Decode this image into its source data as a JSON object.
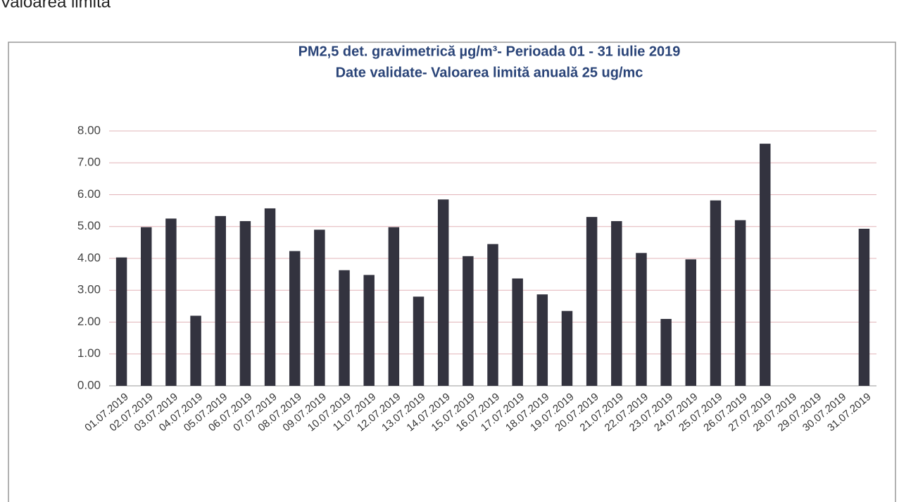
{
  "page_text": "Valoarea limită",
  "chart_data": {
    "type": "bar",
    "title": "PM2,5 det. gravimetrică µg/m³- Perioada 01 - 31 iulie 2019",
    "subtitle": "Date validate- Valoarea limită anuală  25  ug/mc",
    "categories": [
      "01.07.2019",
      "02.07.2019",
      "03.07.2019",
      "04.07.2019",
      "05.07.2019",
      "06.07.2019",
      "07.07.2019",
      "08.07.2019",
      "09.07.2019",
      "10.07.2019",
      "11.07.2019",
      "12.07.2019",
      "13.07.2019",
      "14.07.2019",
      "15.07.2019",
      "16.07.2019",
      "17.07.2019",
      "18.07.2019",
      "19.07.2019",
      "20.07.2019",
      "21.07.2019",
      "22.07.2019",
      "23.07.2019",
      "24.07.2019",
      "25.07.2019",
      "26.07.2019",
      "27.07.2019",
      "28.07.2019",
      "29.07.2019",
      "30.07.2019",
      "31.07.2019"
    ],
    "values": [
      4.03,
      4.98,
      5.25,
      2.2,
      5.33,
      5.17,
      5.57,
      4.23,
      4.9,
      3.63,
      3.48,
      4.98,
      2.8,
      5.85,
      4.07,
      4.45,
      3.37,
      2.87,
      2.35,
      5.3,
      5.17,
      4.17,
      2.1,
      3.97,
      5.82,
      5.2,
      7.6,
      null,
      null,
      null,
      4.93
    ],
    "color": "#33333f",
    "ylim": [
      0,
      8
    ],
    "yticks": [
      {
        "value": 0,
        "label": "0.00"
      },
      {
        "value": 1,
        "label": "1.00"
      },
      {
        "value": 2,
        "label": "2.00"
      },
      {
        "value": 3,
        "label": "3.00"
      },
      {
        "value": 4,
        "label": "4.00"
      },
      {
        "value": 5,
        "label": "5.00"
      },
      {
        "value": 6,
        "label": "6.00"
      },
      {
        "value": 7,
        "label": "7.00"
      },
      {
        "value": 8,
        "label": "8.00"
      }
    ],
    "grid": true
  }
}
